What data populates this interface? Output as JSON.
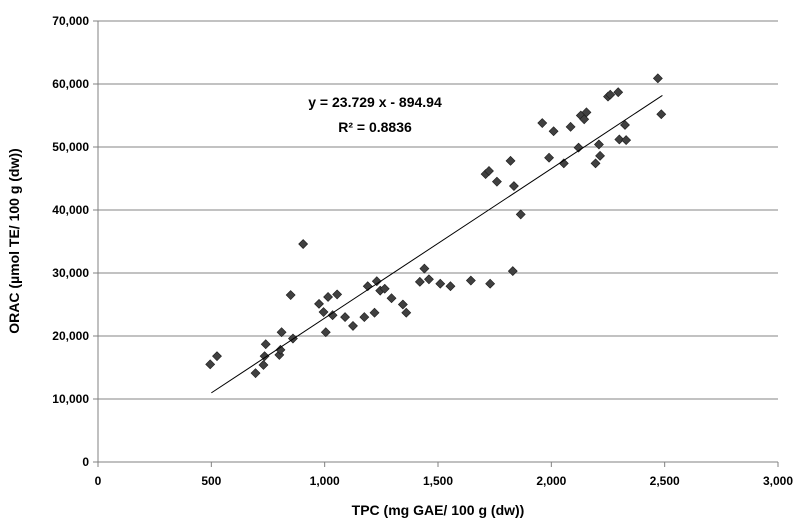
{
  "chart_data": {
    "type": "scatter",
    "xlabel": "TPC (mg GAE/ 100 g (dw))",
    "ylabel": "ORAC (µmol TE/ 100 g (dw))",
    "xlim": [
      0,
      3000
    ],
    "ylim": [
      0,
      70000
    ],
    "x_ticks": [
      0,
      500,
      1000,
      1500,
      2000,
      2500,
      3000
    ],
    "x_tick_labels": [
      "0",
      "500",
      "1,000",
      "1,500",
      "2,000",
      "2,500",
      "3,000"
    ],
    "y_ticks": [
      0,
      10000,
      20000,
      30000,
      40000,
      50000,
      60000,
      70000
    ],
    "y_tick_labels": [
      "0",
      "10,000",
      "20,000",
      "30,000",
      "40,000",
      "50,000",
      "60,000",
      "70,000"
    ],
    "grid": "horizontal",
    "marker": "diamond",
    "marker_color": "#404040",
    "trendline": {
      "slope": 23.729,
      "intercept": -894.94,
      "x_range": [
        500,
        2490
      ]
    },
    "annotations": [
      "y = 23.729 x - 894.94",
      "R² = 0.8836"
    ],
    "points": [
      [
        495,
        15500
      ],
      [
        525,
        16800
      ],
      [
        695,
        14100
      ],
      [
        730,
        15400
      ],
      [
        735,
        16800
      ],
      [
        740,
        18700
      ],
      [
        800,
        17000
      ],
      [
        805,
        17800
      ],
      [
        810,
        20600
      ],
      [
        850,
        26500
      ],
      [
        860,
        19600
      ],
      [
        905,
        34600
      ],
      [
        975,
        25100
      ],
      [
        995,
        23800
      ],
      [
        1005,
        20600
      ],
      [
        1015,
        26200
      ],
      [
        1035,
        23300
      ],
      [
        1055,
        26600
      ],
      [
        1090,
        23000
      ],
      [
        1125,
        21600
      ],
      [
        1175,
        23000
      ],
      [
        1190,
        27900
      ],
      [
        1220,
        23700
      ],
      [
        1230,
        28700
      ],
      [
        1245,
        27200
      ],
      [
        1265,
        27500
      ],
      [
        1295,
        26000
      ],
      [
        1345,
        25000
      ],
      [
        1360,
        23700
      ],
      [
        1420,
        28600
      ],
      [
        1440,
        30700
      ],
      [
        1460,
        29000
      ],
      [
        1510,
        28300
      ],
      [
        1555,
        27900
      ],
      [
        1645,
        28800
      ],
      [
        1710,
        45700
      ],
      [
        1725,
        46200
      ],
      [
        1730,
        28300
      ],
      [
        1760,
        44500
      ],
      [
        1820,
        47800
      ],
      [
        1830,
        30300
      ],
      [
        1835,
        43800
      ],
      [
        1865,
        39300
      ],
      [
        1960,
        53800
      ],
      [
        1990,
        48300
      ],
      [
        2010,
        52500
      ],
      [
        2055,
        47400
      ],
      [
        2085,
        53200
      ],
      [
        2120,
        49900
      ],
      [
        2130,
        55000
      ],
      [
        2145,
        54400
      ],
      [
        2155,
        55500
      ],
      [
        2195,
        47400
      ],
      [
        2210,
        50400
      ],
      [
        2215,
        48600
      ],
      [
        2250,
        58000
      ],
      [
        2260,
        58300
      ],
      [
        2295,
        58700
      ],
      [
        2300,
        51200
      ],
      [
        2325,
        53500
      ],
      [
        2330,
        51100
      ],
      [
        2470,
        60900
      ],
      [
        2485,
        55200
      ]
    ]
  }
}
